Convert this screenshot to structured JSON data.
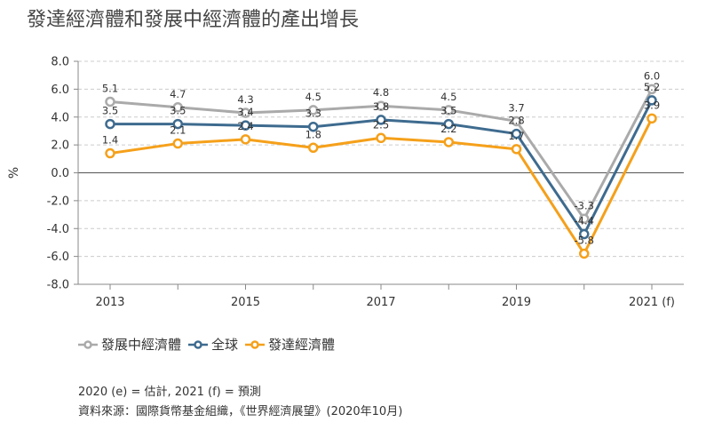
{
  "title": "發達經濟體和發展中經濟體的產出增長",
  "notes": {
    "line1": "2020 (e) = 估計, 2021 (f) = 預測",
    "line2": "資料來源：國際貨幣基金組織，《世界經濟展望》(2020年10月)"
  },
  "colors": {
    "grid": "#cccccc",
    "axis": "#888888",
    "zero_line": "#555555"
  },
  "chart_data": {
    "type": "line",
    "ylabel": "%",
    "xlabel": "",
    "ylim": [
      -8.0,
      8.0
    ],
    "yticks": [
      "8.0",
      "6.0",
      "4.0",
      "2.0",
      "0.0",
      "-2.0",
      "-4.0",
      "-6.0",
      "-8.0"
    ],
    "ytick_values": [
      8,
      6,
      4,
      2,
      0,
      -2,
      -4,
      -6,
      -8
    ],
    "x": [
      2013,
      2014,
      2015,
      2016,
      2017,
      2018,
      2019,
      2020,
      2021
    ],
    "xtick_labels": [
      "2013",
      "",
      "2015",
      "",
      "2017",
      "",
      "2019",
      "",
      "2021 (f)"
    ],
    "grid": true,
    "legend_position": "bottom-left",
    "series": [
      {
        "name": "發展中經濟體",
        "color": "#aaaaaa",
        "values": [
          5.1,
          4.7,
          4.3,
          4.5,
          4.8,
          4.5,
          3.7,
          -3.3,
          6.0
        ],
        "labels": [
          "5.1",
          "4.7",
          "4.3",
          "4.5",
          "4.8",
          "4.5",
          "3.7",
          "-3.3",
          "6.0"
        ]
      },
      {
        "name": "全球",
        "color": "#3e6b8f",
        "values": [
          3.5,
          3.5,
          3.4,
          3.3,
          3.8,
          3.5,
          2.8,
          -4.4,
          5.2
        ],
        "labels": [
          "3.5",
          "3.5",
          "3.4",
          "3.3",
          "3.8",
          "3.5",
          "2.8",
          "-4.4",
          "5.2"
        ]
      },
      {
        "name": "發達經濟體",
        "color": "#f5a01a",
        "values": [
          1.4,
          2.1,
          2.4,
          1.8,
          2.5,
          2.2,
          1.7,
          -5.8,
          3.9
        ],
        "labels": [
          "1.4",
          "2.1",
          "2.4",
          "1.8",
          "2.5",
          "2.2",
          "1.7",
          "-5.8",
          "3.9"
        ]
      }
    ]
  }
}
